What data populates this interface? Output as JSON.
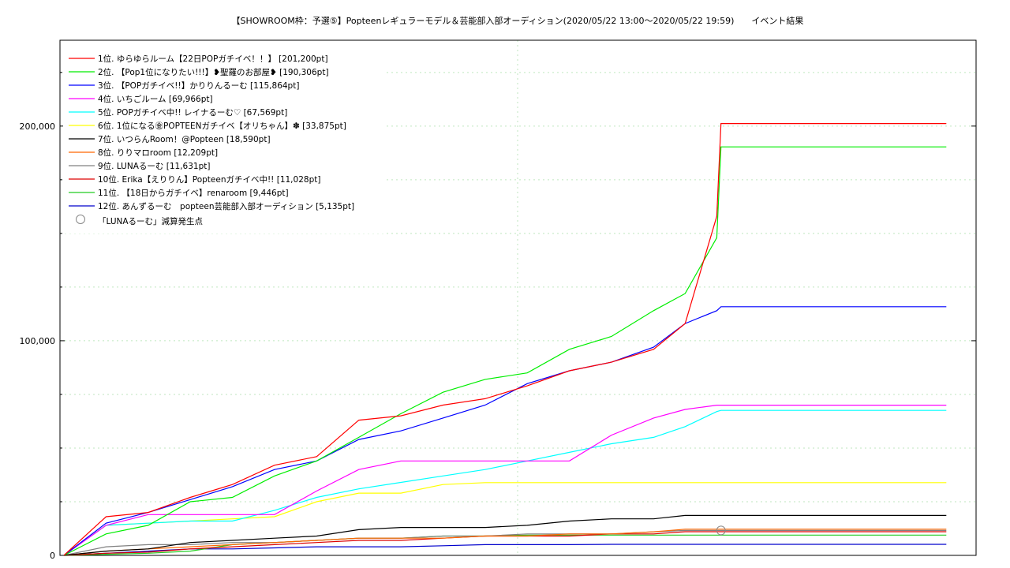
{
  "chart_data": {
    "type": "line",
    "title": "【SHOWROOM枠：予選⑤】Popteenレギュラーモデル＆芸能部入部オーディション(2020/05/22 13:00～2020/05/22 19:59)　　イベント結果",
    "xlabel": "",
    "ylabel": "",
    "xlim": [
      "2020/05/22 13:00",
      "2020/05/22 19:59"
    ],
    "ylim": [
      0,
      240000
    ],
    "yticks": [
      0,
      100000,
      200000
    ],
    "ytick_labels": [
      "0",
      "100,000",
      "200,000"
    ],
    "grid": true,
    "legend_position": "top-left",
    "marker_legend": "「LUNAるーむ」減算発生点",
    "marker_point": {
      "x": "2020/05/22 18:12",
      "y": 11631
    },
    "x": [
      "13:00",
      "13:20",
      "13:40",
      "14:00",
      "14:20",
      "14:40",
      "15:00",
      "15:20",
      "15:40",
      "16:00",
      "16:20",
      "16:40",
      "17:00",
      "17:20",
      "17:40",
      "17:55",
      "18:10",
      "18:12",
      "19:59"
    ],
    "series": [
      {
        "name": "1位. ゆらゆらルーム【22日POPガチイベ！！】 [201,200pt]",
        "color": "#ff0000",
        "values": [
          0,
          18000,
          20000,
          27000,
          33000,
          42000,
          46000,
          63000,
          65000,
          70000,
          73000,
          79000,
          86000,
          90000,
          96000,
          108000,
          158000,
          201200,
          201200
        ]
      },
      {
        "name": "2位. 【Pop1位になりたい!!!】❥聖羅のお部屋❥ [190,306pt]",
        "color": "#00ee00",
        "values": [
          0,
          10000,
          14000,
          25000,
          27000,
          37000,
          44000,
          55000,
          66000,
          76000,
          82000,
          85000,
          96000,
          102000,
          114000,
          122000,
          148000,
          190306,
          190306
        ]
      },
      {
        "name": "3位. 【POPガチイベ!!】かりりんるーむ [115,864pt]",
        "color": "#0000ff",
        "values": [
          0,
          15000,
          20000,
          26000,
          32000,
          40000,
          44000,
          54000,
          58000,
          64000,
          70000,
          80000,
          86000,
          90000,
          97000,
          108000,
          114000,
          115864,
          115864
        ]
      },
      {
        "name": "4位. いちごルーム [69,966pt]",
        "color": "#ff00ff",
        "values": [
          0,
          14000,
          19000,
          19000,
          19000,
          19000,
          30000,
          40000,
          44000,
          44000,
          44000,
          44000,
          44000,
          56000,
          64000,
          68000,
          69966,
          69966,
          69966
        ]
      },
      {
        "name": "5位. POPガチイベ中!! レイナるーむ♡ [67,569pt]",
        "color": "#00ffff",
        "values": [
          0,
          14000,
          15000,
          16000,
          16000,
          21000,
          27000,
          31000,
          34000,
          37000,
          40000,
          44000,
          48000,
          52000,
          55000,
          60000,
          67000,
          67569,
          67569
        ]
      },
      {
        "name": "6位. 1位になる㊎POPTEENガチイベ【オリちゃん】✽ [33,875pt]",
        "color": "#ffff00",
        "values": [
          0,
          14000,
          15000,
          16000,
          17000,
          18000,
          25000,
          29000,
          29000,
          33000,
          33875,
          33875,
          33875,
          33875,
          33875,
          33875,
          33875,
          33875,
          33875
        ]
      },
      {
        "name": "7位. いつらんRoom！@Popteen [18,590pt]",
        "color": "#000000",
        "values": [
          0,
          2000,
          3000,
          6000,
          7000,
          8000,
          9000,
          12000,
          13000,
          13000,
          13000,
          14000,
          16000,
          17000,
          17000,
          18590,
          18590,
          18590,
          18590
        ]
      },
      {
        "name": "8位. りりマロroom [12,209pt]",
        "color": "#ff6600",
        "values": [
          0,
          2000,
          3000,
          4000,
          5000,
          6000,
          7000,
          8000,
          8000,
          8000,
          9000,
          9000,
          10000,
          10000,
          11000,
          12209,
          12209,
          12209,
          12209
        ]
      },
      {
        "name": "9位. LUNAるーむ [11,631pt]",
        "color": "#808080",
        "values": [
          0,
          4000,
          5000,
          5000,
          6000,
          6000,
          7000,
          8000,
          8000,
          9000,
          9000,
          10000,
          10000,
          10000,
          11000,
          11631,
          11631,
          11631,
          11631
        ]
      },
      {
        "name": "10位. Erika【えりりん】Popteenガチイベ中!! [11,028pt]",
        "color": "#dd0000",
        "values": [
          0,
          1000,
          1500,
          3000,
          4000,
          5000,
          6000,
          7000,
          7000,
          8000,
          9000,
          9000,
          9000,
          10000,
          10000,
          11028,
          11028,
          11028,
          11028
        ]
      },
      {
        "name": "11位. 【18日からガチイベ】renaroom [9,446pt]",
        "color": "#22cc22",
        "values": [
          0,
          500,
          1000,
          2000,
          5000,
          6000,
          7000,
          8000,
          8000,
          9000,
          9000,
          9446,
          9446,
          9446,
          9446,
          9446,
          9446,
          9446,
          9446
        ]
      },
      {
        "name": "12位. あんずるーむ　popteen芸能部入部オーディション [5,135pt]",
        "color": "#0000cc",
        "values": [
          0,
          1000,
          2000,
          3000,
          3000,
          3500,
          4000,
          4000,
          4000,
          4500,
          5000,
          5000,
          5000,
          5135,
          5135,
          5135,
          5135,
          5135,
          5135
        ]
      }
    ]
  }
}
